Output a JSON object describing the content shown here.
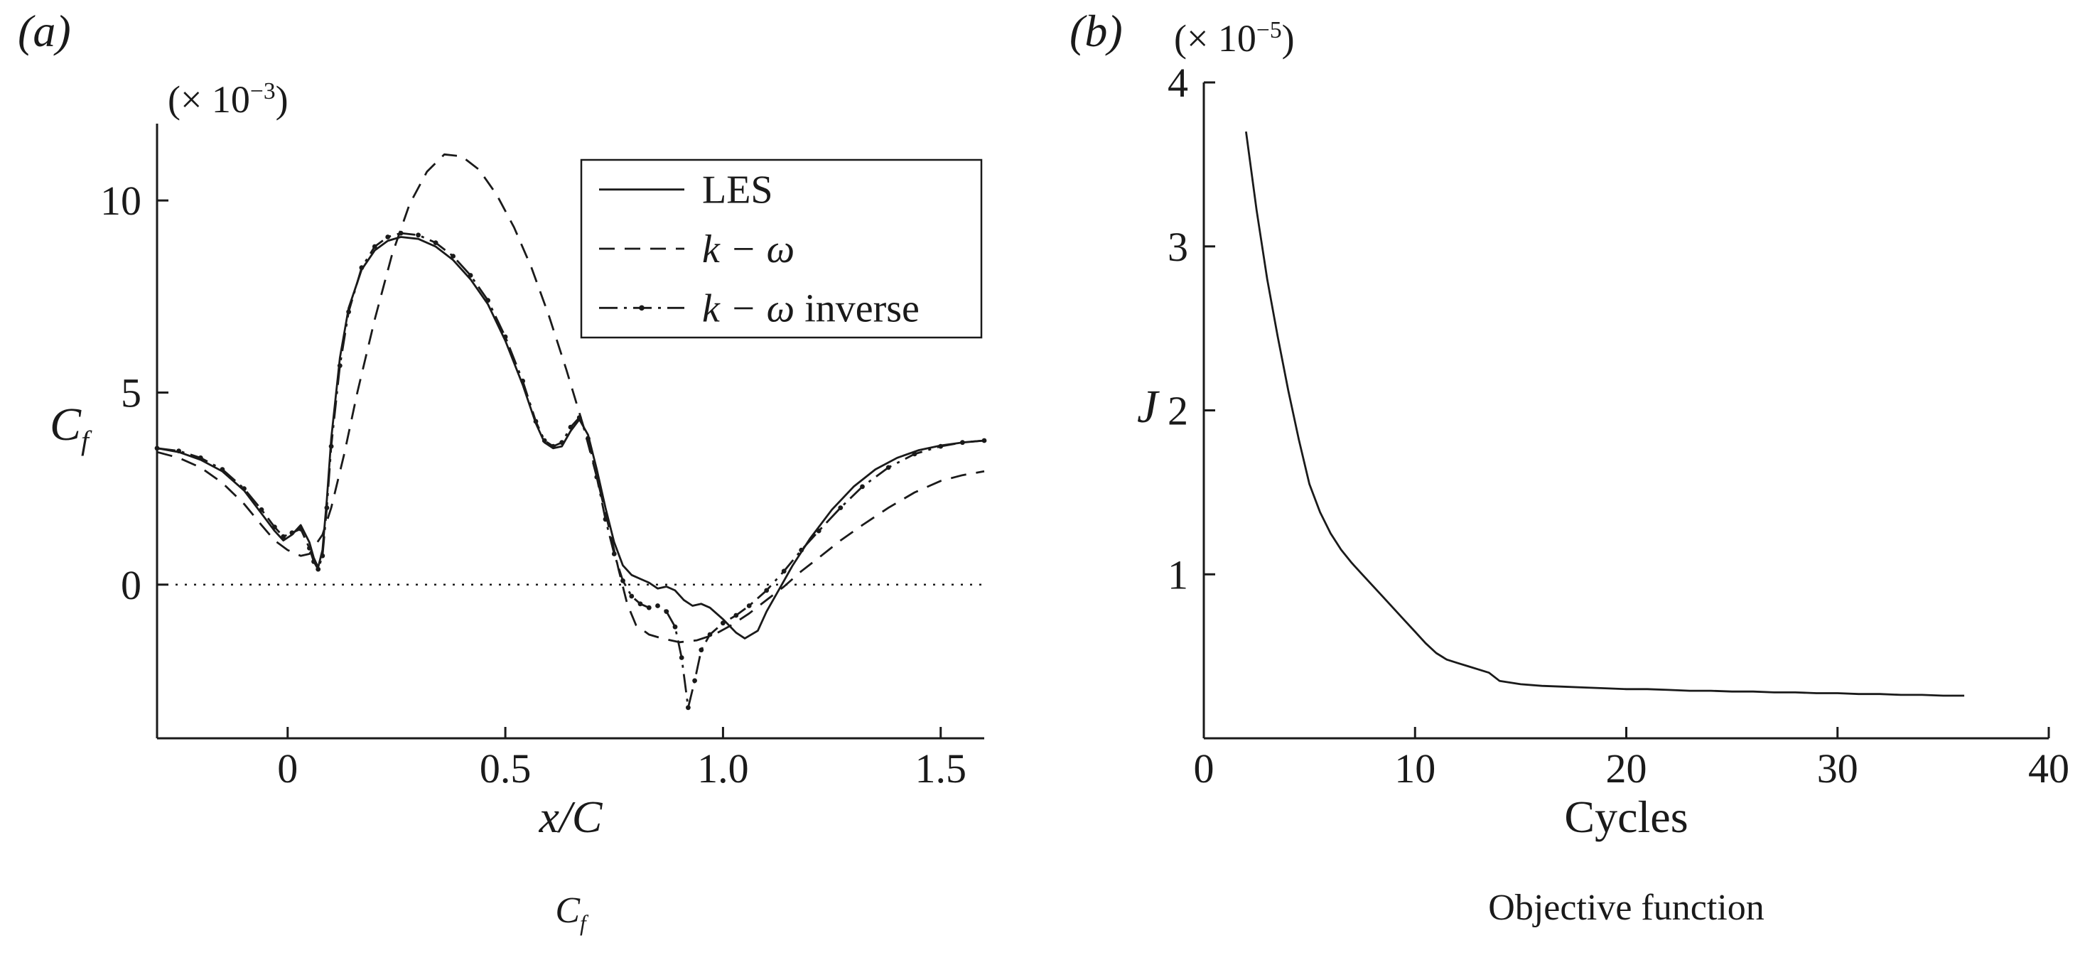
{
  "page": {
    "background": "#ffffff",
    "ink": "#1a1a1a"
  },
  "panels": {
    "a": {
      "tag": "(a)",
      "multiplier": {
        "prefix": "(× 10",
        "sup": "−3",
        "suffix": ")"
      },
      "ylabel": {
        "base": "C",
        "sub": "f"
      },
      "xlabel": "x/C",
      "caption": {
        "base": "C",
        "sub": "f"
      }
    },
    "b": {
      "tag": "(b)",
      "multiplier": {
        "prefix": "(× 10",
        "sup": "−5",
        "suffix": ")"
      },
      "ylabel": "J",
      "xlabel": "Cycles",
      "caption": "Objective function"
    }
  },
  "chart_data": [
    {
      "id": "chart-a",
      "type": "line",
      "title": "Skin friction coefficient comparison",
      "xlabel": "x/C",
      "ylabel": "Cf (× 10⁻³)",
      "xlim": [
        -0.3,
        1.6
      ],
      "ylim": [
        -4,
        12
      ],
      "grid": false,
      "zero_line": true,
      "xticks": [
        {
          "v": 0,
          "label": "0"
        },
        {
          "v": 0.5,
          "label": "0.5"
        },
        {
          "v": 1.0,
          "label": "1.0"
        },
        {
          "v": 1.5,
          "label": "1.5"
        }
      ],
      "yticks": [
        {
          "v": 0,
          "label": "0"
        },
        {
          "v": 5,
          "label": "5"
        },
        {
          "v": 10,
          "label": "10"
        }
      ],
      "legend": {
        "position": "top-right",
        "entries": [
          {
            "math": "",
            "text": "LES",
            "style": "solid"
          },
          {
            "math": "k − ω",
            "text": "",
            "style": "dashed"
          },
          {
            "math": "k − ω",
            "text": " inverse",
            "style": "dashdot"
          }
        ]
      },
      "series": [
        {
          "name": "LES",
          "style": "solid",
          "markers": false,
          "points": [
            [
              -0.3,
              3.55
            ],
            [
              -0.25,
              3.45
            ],
            [
              -0.2,
              3.25
            ],
            [
              -0.15,
              2.95
            ],
            [
              -0.1,
              2.45
            ],
            [
              -0.06,
              1.85
            ],
            [
              -0.03,
              1.4
            ],
            [
              -0.01,
              1.15
            ],
            [
              0.01,
              1.3
            ],
            [
              0.03,
              1.55
            ],
            [
              0.05,
              1.1
            ],
            [
              0.06,
              0.7
            ],
            [
              0.07,
              0.45
            ],
            [
              0.08,
              0.9
            ],
            [
              0.09,
              2.2
            ],
            [
              0.1,
              3.8
            ],
            [
              0.12,
              5.9
            ],
            [
              0.14,
              7.2
            ],
            [
              0.17,
              8.2
            ],
            [
              0.2,
              8.7
            ],
            [
              0.23,
              8.95
            ],
            [
              0.26,
              9.05
            ],
            [
              0.3,
              9.0
            ],
            [
              0.34,
              8.8
            ],
            [
              0.38,
              8.45
            ],
            [
              0.42,
              7.95
            ],
            [
              0.46,
              7.3
            ],
            [
              0.5,
              6.35
            ],
            [
              0.54,
              5.2
            ],
            [
              0.57,
              4.2
            ],
            [
              0.59,
              3.7
            ],
            [
              0.61,
              3.55
            ],
            [
              0.63,
              3.6
            ],
            [
              0.65,
              4.0
            ],
            [
              0.67,
              4.3
            ],
            [
              0.69,
              3.9
            ],
            [
              0.71,
              3.0
            ],
            [
              0.73,
              2.0
            ],
            [
              0.75,
              1.1
            ],
            [
              0.77,
              0.5
            ],
            [
              0.79,
              0.25
            ],
            [
              0.81,
              0.15
            ],
            [
              0.83,
              0.05
            ],
            [
              0.85,
              -0.1
            ],
            [
              0.87,
              -0.05
            ],
            [
              0.89,
              -0.15
            ],
            [
              0.91,
              -0.4
            ],
            [
              0.93,
              -0.55
            ],
            [
              0.95,
              -0.5
            ],
            [
              0.97,
              -0.6
            ],
            [
              1.0,
              -0.9
            ],
            [
              1.03,
              -1.25
            ],
            [
              1.05,
              -1.4
            ],
            [
              1.08,
              -1.2
            ],
            [
              1.1,
              -0.7
            ],
            [
              1.13,
              -0.1
            ],
            [
              1.16,
              0.5
            ],
            [
              1.2,
              1.2
            ],
            [
              1.25,
              1.95
            ],
            [
              1.3,
              2.55
            ],
            [
              1.35,
              3.0
            ],
            [
              1.4,
              3.3
            ],
            [
              1.45,
              3.5
            ],
            [
              1.5,
              3.62
            ],
            [
              1.55,
              3.7
            ],
            [
              1.6,
              3.75
            ]
          ]
        },
        {
          "name": "k − ω",
          "style": "dashed",
          "markers": false,
          "points": [
            [
              -0.3,
              3.45
            ],
            [
              -0.25,
              3.3
            ],
            [
              -0.2,
              3.05
            ],
            [
              -0.15,
              2.65
            ],
            [
              -0.1,
              2.1
            ],
            [
              -0.06,
              1.55
            ],
            [
              -0.03,
              1.15
            ],
            [
              0.0,
              0.9
            ],
            [
              0.03,
              0.75
            ],
            [
              0.05,
              0.8
            ],
            [
              0.08,
              1.3
            ],
            [
              0.1,
              2.0
            ],
            [
              0.13,
              3.4
            ],
            [
              0.16,
              5.0
            ],
            [
              0.2,
              6.9
            ],
            [
              0.24,
              8.6
            ],
            [
              0.28,
              9.9
            ],
            [
              0.32,
              10.75
            ],
            [
              0.36,
              11.2
            ],
            [
              0.4,
              11.15
            ],
            [
              0.44,
              10.8
            ],
            [
              0.48,
              10.15
            ],
            [
              0.52,
              9.3
            ],
            [
              0.56,
              8.25
            ],
            [
              0.6,
              7.0
            ],
            [
              0.64,
              5.6
            ],
            [
              0.68,
              4.1
            ],
            [
              0.71,
              2.8
            ],
            [
              0.74,
              1.4
            ],
            [
              0.76,
              0.4
            ],
            [
              0.78,
              -0.5
            ],
            [
              0.8,
              -1.05
            ],
            [
              0.83,
              -1.3
            ],
            [
              0.86,
              -1.4
            ],
            [
              0.9,
              -1.5
            ],
            [
              0.94,
              -1.45
            ],
            [
              0.98,
              -1.3
            ],
            [
              1.02,
              -1.05
            ],
            [
              1.06,
              -0.75
            ],
            [
              1.1,
              -0.4
            ],
            [
              1.14,
              -0.05
            ],
            [
              1.18,
              0.35
            ],
            [
              1.22,
              0.7
            ],
            [
              1.27,
              1.15
            ],
            [
              1.32,
              1.55
            ],
            [
              1.38,
              2.0
            ],
            [
              1.44,
              2.4
            ],
            [
              1.5,
              2.7
            ],
            [
              1.55,
              2.85
            ],
            [
              1.6,
              2.95
            ]
          ]
        },
        {
          "name": "k − ω inverse",
          "style": "dashdot",
          "markers": true,
          "points": [
            [
              -0.3,
              3.55
            ],
            [
              -0.25,
              3.48
            ],
            [
              -0.2,
              3.3
            ],
            [
              -0.15,
              3.0
            ],
            [
              -0.1,
              2.5
            ],
            [
              -0.06,
              1.95
            ],
            [
              -0.03,
              1.5
            ],
            [
              -0.01,
              1.25
            ],
            [
              0.01,
              1.35
            ],
            [
              0.03,
              1.45
            ],
            [
              0.05,
              0.95
            ],
            [
              0.06,
              0.6
            ],
            [
              0.07,
              0.4
            ],
            [
              0.08,
              0.75
            ],
            [
              0.09,
              2.0
            ],
            [
              0.1,
              3.6
            ],
            [
              0.12,
              5.7
            ],
            [
              0.14,
              7.1
            ],
            [
              0.17,
              8.25
            ],
            [
              0.2,
              8.8
            ],
            [
              0.23,
              9.05
            ],
            [
              0.26,
              9.15
            ],
            [
              0.3,
              9.1
            ],
            [
              0.34,
              8.9
            ],
            [
              0.38,
              8.55
            ],
            [
              0.42,
              8.05
            ],
            [
              0.46,
              7.4
            ],
            [
              0.5,
              6.45
            ],
            [
              0.54,
              5.3
            ],
            [
              0.57,
              4.25
            ],
            [
              0.59,
              3.75
            ],
            [
              0.61,
              3.6
            ],
            [
              0.63,
              3.7
            ],
            [
              0.65,
              4.1
            ],
            [
              0.67,
              4.35
            ],
            [
              0.69,
              3.8
            ],
            [
              0.71,
              2.8
            ],
            [
              0.73,
              1.7
            ],
            [
              0.75,
              0.8
            ],
            [
              0.77,
              0.1
            ],
            [
              0.79,
              -0.3
            ],
            [
              0.81,
              -0.5
            ],
            [
              0.83,
              -0.6
            ],
            [
              0.85,
              -0.55
            ],
            [
              0.87,
              -0.7
            ],
            [
              0.89,
              -1.1
            ],
            [
              0.905,
              -1.9
            ],
            [
              0.92,
              -3.2
            ],
            [
              0.935,
              -2.5
            ],
            [
              0.95,
              -1.7
            ],
            [
              0.97,
              -1.3
            ],
            [
              1.0,
              -1.0
            ],
            [
              1.03,
              -0.8
            ],
            [
              1.06,
              -0.55
            ],
            [
              1.1,
              -0.15
            ],
            [
              1.14,
              0.35
            ],
            [
              1.18,
              0.9
            ],
            [
              1.22,
              1.4
            ],
            [
              1.27,
              2.0
            ],
            [
              1.32,
              2.55
            ],
            [
              1.38,
              3.05
            ],
            [
              1.44,
              3.4
            ],
            [
              1.5,
              3.6
            ],
            [
              1.55,
              3.7
            ],
            [
              1.6,
              3.75
            ]
          ]
        }
      ]
    },
    {
      "id": "chart-b",
      "type": "line",
      "title": "Objective function convergence",
      "xlabel": "Cycles",
      "ylabel": "J (× 10⁻⁵)",
      "xlim": [
        0,
        40
      ],
      "ylim": [
        0,
        4
      ],
      "grid": false,
      "zero_line": false,
      "xticks": [
        {
          "v": 0,
          "label": "0"
        },
        {
          "v": 10,
          "label": "10"
        },
        {
          "v": 20,
          "label": "20"
        },
        {
          "v": 30,
          "label": "30"
        },
        {
          "v": 40,
          "label": "40"
        }
      ],
      "yticks": [
        {
          "v": 1,
          "label": "1"
        },
        {
          "v": 2,
          "label": "2"
        },
        {
          "v": 3,
          "label": "3"
        },
        {
          "v": 4,
          "label": "4"
        }
      ],
      "series": [
        {
          "name": "Objective function J",
          "style": "solid",
          "markers": false,
          "points": [
            [
              2,
              3.7
            ],
            [
              2.5,
              3.22
            ],
            [
              3,
              2.8
            ],
            [
              3.5,
              2.45
            ],
            [
              4,
              2.12
            ],
            [
              4.5,
              1.82
            ],
            [
              5,
              1.55
            ],
            [
              5.5,
              1.38
            ],
            [
              6,
              1.25
            ],
            [
              6.5,
              1.15
            ],
            [
              7,
              1.07
            ],
            [
              7.5,
              1.0
            ],
            [
              8,
              0.93
            ],
            [
              8.5,
              0.86
            ],
            [
              9,
              0.79
            ],
            [
              9.5,
              0.72
            ],
            [
              10,
              0.65
            ],
            [
              10.5,
              0.58
            ],
            [
              11,
              0.52
            ],
            [
              11.5,
              0.48
            ],
            [
              12,
              0.46
            ],
            [
              12.5,
              0.44
            ],
            [
              13,
              0.42
            ],
            [
              13.5,
              0.4
            ],
            [
              14,
              0.35
            ],
            [
              15,
              0.33
            ],
            [
              16,
              0.32
            ],
            [
              17,
              0.315
            ],
            [
              18,
              0.31
            ],
            [
              19,
              0.305
            ],
            [
              20,
              0.3
            ],
            [
              21,
              0.3
            ],
            [
              22,
              0.295
            ],
            [
              23,
              0.29
            ],
            [
              24,
              0.29
            ],
            [
              25,
              0.285
            ],
            [
              26,
              0.285
            ],
            [
              27,
              0.28
            ],
            [
              28,
              0.28
            ],
            [
              29,
              0.275
            ],
            [
              30,
              0.275
            ],
            [
              31,
              0.27
            ],
            [
              32,
              0.27
            ],
            [
              33,
              0.265
            ],
            [
              34,
              0.265
            ],
            [
              35,
              0.26
            ],
            [
              36,
              0.26
            ]
          ]
        }
      ]
    }
  ]
}
